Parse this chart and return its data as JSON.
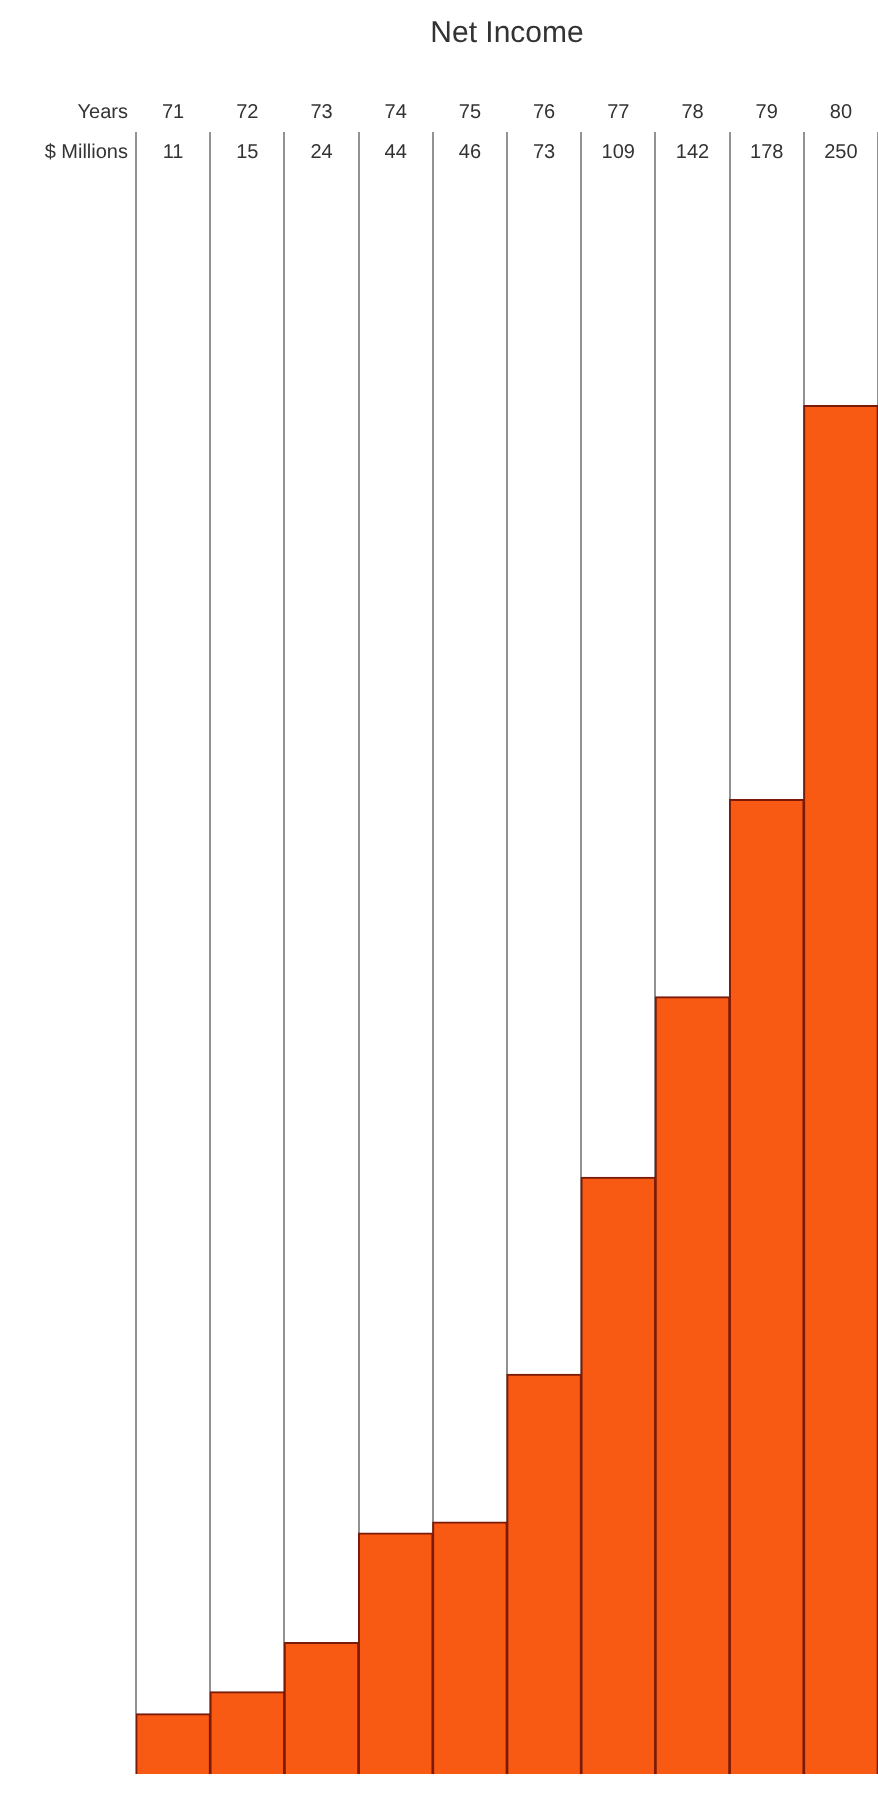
{
  "chart_data": {
    "type": "bar",
    "title": "Net Income",
    "xlabel": "Years",
    "ylabel": "$ Millions",
    "categories": [
      "71",
      "72",
      "73",
      "74",
      "75",
      "76",
      "77",
      "78",
      "79",
      "80"
    ],
    "values": [
      11,
      15,
      24,
      44,
      46,
      73,
      109,
      142,
      178,
      250
    ],
    "color": "#f85a14",
    "data_labels": true,
    "grid": "x",
    "legend": false
  }
}
